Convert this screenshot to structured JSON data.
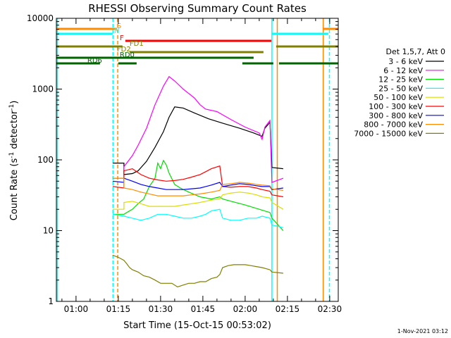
{
  "chart_data": {
    "type": "line",
    "title": "RHESSI Observing Summary Count Rates",
    "xlabel": "Start Time (15-Oct-15 00:53:02)",
    "ylabel_main": "Count Rate (s",
    "ylabel_sup1": "-1",
    "ylabel_mid": " detector",
    "ylabel_sup2": "-1",
    "ylabel_end": ")",
    "yscale": "log",
    "ylim": [
      1,
      10000
    ],
    "xlim_minutes": [
      53.03,
      153.03
    ],
    "x_ticks": [
      {
        "minutes": 60,
        "label": "01:00"
      },
      {
        "minutes": 75,
        "label": "01:15"
      },
      {
        "minutes": 90,
        "label": "01:30"
      },
      {
        "minutes": 105,
        "label": "01:45"
      },
      {
        "minutes": 120,
        "label": "02:00"
      },
      {
        "minutes": 135,
        "label": "02:15"
      },
      {
        "minutes": 150,
        "label": "02:30"
      }
    ],
    "y_ticks": [
      {
        "value": 1,
        "label": "1"
      },
      {
        "value": 10,
        "label": "10"
      },
      {
        "value": 100,
        "label": "100"
      },
      {
        "value": 1000,
        "label": "1000"
      },
      {
        "value": 10000,
        "label": "10000"
      }
    ],
    "legend_title": "Det 1,5,7, Att 0",
    "series": [
      {
        "name": "3 - 6 keV",
        "color": "#000000",
        "points": [
          [
            73,
            90
          ],
          [
            77,
            90
          ],
          [
            77,
            62
          ],
          [
            80,
            64
          ],
          [
            82,
            70
          ],
          [
            85,
            95
          ],
          [
            88,
            150
          ],
          [
            91,
            250
          ],
          [
            93,
            400
          ],
          [
            95,
            560
          ],
          [
            98,
            540
          ],
          [
            102,
            460
          ],
          [
            107,
            380
          ],
          [
            112,
            330
          ],
          [
            118,
            280
          ],
          [
            123,
            240
          ],
          [
            126,
            215
          ],
          [
            127,
            280
          ],
          [
            128.8,
            340
          ],
          [
            129.5,
            78
          ],
          [
            133.5,
            75
          ]
        ]
      },
      {
        "name": "6 - 12 keV",
        "color": "#ff00ff",
        "points": [
          [
            73,
            55
          ],
          [
            77,
            55
          ],
          [
            77,
            80
          ],
          [
            80,
            115
          ],
          [
            82,
            160
          ],
          [
            85,
            280
          ],
          [
            88,
            600
          ],
          [
            91,
            1100
          ],
          [
            93,
            1500
          ],
          [
            95,
            1300
          ],
          [
            98,
            1000
          ],
          [
            102,
            750
          ],
          [
            104,
            600
          ],
          [
            106,
            520
          ],
          [
            110,
            480
          ],
          [
            115,
            370
          ],
          [
            120,
            290
          ],
          [
            125,
            240
          ],
          [
            126,
            195
          ],
          [
            127,
            290
          ],
          [
            128.8,
            360
          ],
          [
            129.5,
            48
          ],
          [
            133.5,
            55
          ]
        ]
      },
      {
        "name": "12 - 25 keV",
        "color": "#00dd00",
        "points": [
          [
            73,
            17
          ],
          [
            77,
            17
          ],
          [
            78,
            18
          ],
          [
            80,
            20
          ],
          [
            82,
            24
          ],
          [
            84,
            28
          ],
          [
            86,
            42
          ],
          [
            88,
            55
          ],
          [
            89,
            90
          ],
          [
            90,
            75
          ],
          [
            91,
            98
          ],
          [
            92,
            85
          ],
          [
            93,
            65
          ],
          [
            95,
            45
          ],
          [
            97,
            40
          ],
          [
            100,
            35
          ],
          [
            104,
            30
          ],
          [
            108,
            28
          ],
          [
            111,
            30
          ],
          [
            112,
            28
          ],
          [
            115,
            26
          ],
          [
            120,
            23
          ],
          [
            125,
            20
          ],
          [
            128.8,
            18
          ],
          [
            129.5,
            15
          ],
          [
            133.5,
            10
          ]
        ]
      },
      {
        "name": "25 - 50 keV",
        "color": "#00ffff",
        "points": [
          [
            73,
            17
          ],
          [
            77,
            16
          ],
          [
            80,
            15
          ],
          [
            83,
            14
          ],
          [
            86,
            15
          ],
          [
            89,
            17
          ],
          [
            92,
            17
          ],
          [
            95,
            16
          ],
          [
            98,
            15
          ],
          [
            101,
            15
          ],
          [
            104,
            16
          ],
          [
            106,
            17
          ],
          [
            108,
            19
          ],
          [
            111,
            20
          ],
          [
            112,
            15
          ],
          [
            115,
            14
          ],
          [
            118,
            14
          ],
          [
            121,
            15
          ],
          [
            124,
            15
          ],
          [
            126,
            16
          ],
          [
            128.8,
            15
          ],
          [
            129.5,
            12
          ],
          [
            133.5,
            11
          ]
        ]
      },
      {
        "name": "50 - 100 keV",
        "color": "#dddd00",
        "points": [
          [
            73,
            20
          ],
          [
            77,
            20
          ],
          [
            77,
            25
          ],
          [
            80,
            26
          ],
          [
            83,
            24
          ],
          [
            86,
            22
          ],
          [
            89,
            22
          ],
          [
            92,
            22
          ],
          [
            95,
            22
          ],
          [
            98,
            23
          ],
          [
            101,
            24
          ],
          [
            104,
            25
          ],
          [
            106,
            26
          ],
          [
            108,
            27
          ],
          [
            111,
            28
          ],
          [
            112,
            32
          ],
          [
            115,
            34
          ],
          [
            118,
            35
          ],
          [
            121,
            34
          ],
          [
            124,
            32
          ],
          [
            126,
            30
          ],
          [
            128.8,
            29
          ],
          [
            129.5,
            25
          ],
          [
            133.5,
            20
          ]
        ]
      },
      {
        "name": "100 - 300 keV",
        "color": "#ff0000",
        "points": [
          [
            73,
            42
          ],
          [
            77,
            40
          ],
          [
            77,
            70
          ],
          [
            80,
            75
          ],
          [
            83,
            62
          ],
          [
            86,
            55
          ],
          [
            89,
            52
          ],
          [
            92,
            50
          ],
          [
            95,
            51
          ],
          [
            98,
            53
          ],
          [
            101,
            57
          ],
          [
            104,
            62
          ],
          [
            106,
            68
          ],
          [
            108,
            75
          ],
          [
            111,
            82
          ],
          [
            112,
            42
          ],
          [
            115,
            41
          ],
          [
            118,
            42
          ],
          [
            121,
            42
          ],
          [
            124,
            40
          ],
          [
            126,
            38
          ],
          [
            128.8,
            36
          ],
          [
            129.5,
            32
          ],
          [
            133.5,
            30
          ]
        ]
      },
      {
        "name": "300 - 800 keV",
        "color": "#0000ff",
        "points": [
          [
            73,
            50
          ],
          [
            77,
            48
          ],
          [
            77,
            55
          ],
          [
            80,
            50
          ],
          [
            83,
            45
          ],
          [
            86,
            42
          ],
          [
            89,
            40
          ],
          [
            92,
            38
          ],
          [
            95,
            38
          ],
          [
            98,
            38
          ],
          [
            101,
            39
          ],
          [
            104,
            40
          ],
          [
            106,
            42
          ],
          [
            108,
            44
          ],
          [
            111,
            48
          ],
          [
            112,
            42
          ],
          [
            115,
            44
          ],
          [
            118,
            46
          ],
          [
            121,
            45
          ],
          [
            124,
            43
          ],
          [
            126,
            42
          ],
          [
            128.8,
            42
          ],
          [
            129.5,
            38
          ],
          [
            133.5,
            40
          ]
        ]
      },
      {
        "name": "800 - 7000 keV",
        "color": "#ff8c00",
        "points": [
          [
            73,
            55
          ],
          [
            77,
            55
          ],
          [
            77,
            40
          ],
          [
            80,
            38
          ],
          [
            83,
            35
          ],
          [
            86,
            33
          ],
          [
            89,
            31
          ],
          [
            92,
            31
          ],
          [
            95,
            31
          ],
          [
            98,
            31
          ],
          [
            101,
            32
          ],
          [
            104,
            33
          ],
          [
            106,
            34
          ],
          [
            108,
            35
          ],
          [
            111,
            37
          ],
          [
            112,
            45
          ],
          [
            115,
            46
          ],
          [
            118,
            48
          ],
          [
            121,
            47
          ],
          [
            124,
            45
          ],
          [
            126,
            44
          ],
          [
            128.8,
            43
          ],
          [
            129.5,
            39
          ],
          [
            133.5,
            37
          ]
        ]
      },
      {
        "name": "7000 - 15000 keV",
        "color": "#808000",
        "points": [
          [
            73,
            4.5
          ],
          [
            75,
            4.2
          ],
          [
            77,
            3.8
          ],
          [
            78,
            3.4
          ],
          [
            79,
            3
          ],
          [
            80,
            2.8
          ],
          [
            82,
            2.6
          ],
          [
            84,
            2.3
          ],
          [
            86,
            2.2
          ],
          [
            88,
            2
          ],
          [
            90,
            1.8
          ],
          [
            92,
            1.8
          ],
          [
            94,
            1.8
          ],
          [
            96,
            1.6
          ],
          [
            98,
            1.7
          ],
          [
            100,
            1.8
          ],
          [
            102,
            1.8
          ],
          [
            104,
            1.9
          ],
          [
            106,
            1.9
          ],
          [
            108,
            2.1
          ],
          [
            110,
            2.2
          ],
          [
            111,
            2.4
          ],
          [
            112,
            3
          ],
          [
            114,
            3.2
          ],
          [
            116,
            3.3
          ],
          [
            118,
            3.3
          ],
          [
            120,
            3.3
          ],
          [
            122,
            3.2
          ],
          [
            124,
            3.1
          ],
          [
            126,
            3
          ],
          [
            128.8,
            2.8
          ],
          [
            129.5,
            2.6
          ],
          [
            133.5,
            2.5
          ]
        ]
      }
    ],
    "state_bars": [
      {
        "label": "S",
        "color": "#ff8c00",
        "label_at": 74.5,
        "segments": [
          [
            53.03,
            74.5
          ],
          [
            147.5,
            153.03
          ]
        ]
      },
      {
        "label": "N",
        "color": "#00ffff",
        "label_at": 73.5,
        "segments": [
          [
            53.03,
            73
          ],
          [
            129.5,
            149.5
          ]
        ]
      },
      {
        "label": "F",
        "color": "#ff0000",
        "label_at": 75.5,
        "segments": [
          [
            77.5,
            129.3
          ]
        ]
      },
      {
        "label": "FD1",
        "color": "#808000",
        "label_at": 79,
        "segments": [
          [
            53.03,
            76.5
          ],
          [
            131,
            153.03
          ]
        ]
      },
      {
        "label": "FD2",
        "color": "#808000",
        "label_at": 74.5,
        "segments": [
          [
            79,
            126.5
          ]
        ]
      },
      {
        "label": "RD0",
        "color": "#006400",
        "label_at": 75.5,
        "segments": [
          [
            53.03,
            123
          ]
        ]
      },
      {
        "label": "RD6",
        "color": "#006400",
        "label_at": 64,
        "segments": [
          [
            53.03,
            68.5
          ],
          [
            75,
            81.5
          ],
          [
            119,
            130
          ],
          [
            132,
            153.03
          ]
        ]
      }
    ],
    "vertical_markers": [
      {
        "minutes": 53.4,
        "color": "#00ffff",
        "style": "solid"
      },
      {
        "minutes": 73.1,
        "color": "#00ffff",
        "style": "dashed"
      },
      {
        "minutes": 74.8,
        "color": "#ff8c00",
        "style": "dashed"
      },
      {
        "minutes": 129.5,
        "color": "#00ffff",
        "style": "solid"
      },
      {
        "minutes": 131.4,
        "color": "#ff8c00",
        "style": "solid"
      },
      {
        "minutes": 147.7,
        "color": "#ff8c00",
        "style": "solid"
      },
      {
        "minutes": 149.9,
        "color": "#00ffff",
        "style": "dashed"
      }
    ],
    "footer_date": "1-Nov-2021 03:12"
  }
}
